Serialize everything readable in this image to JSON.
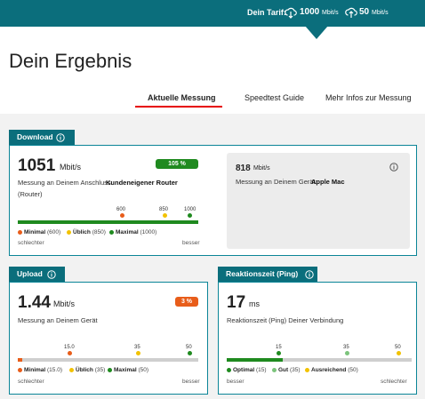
{
  "header": {
    "tariff_label": "Dein Tarif:",
    "download": 1000,
    "download_unit": "Mbit/s",
    "upload": 50,
    "upload_unit": "Mbit/s"
  },
  "title": "Dein Ergebnis",
  "tabs": [
    "Aktuelle Messung",
    "Speedtest Guide",
    "Mehr Infos zur Messung"
  ],
  "download": {
    "label": "Download",
    "value": 1051,
    "unit": "Mbit/s",
    "badge": "105 %",
    "description": "Messung an Deinem Anschluss:",
    "device": "Kundeneigener Router",
    "device_type": "(Router)",
    "ticks": [
      600,
      850,
      1000
    ],
    "legend": [
      {
        "name": "Minimal",
        "value": "(600)"
      },
      {
        "name": "Üblich",
        "value": "(850)"
      },
      {
        "name": "Maximal",
        "value": "(1000)"
      }
    ],
    "scale_left": "schlechter",
    "scale_right": "besser",
    "device_box": {
      "value": 818,
      "unit": "Mbit/s",
      "description": "Messung an Deinem Gerät:",
      "device": "Apple Mac"
    }
  },
  "upload": {
    "label": "Upload",
    "value": 1.44,
    "unit": "Mbit/s",
    "badge": "3 %",
    "description": "Messung an Deinem Gerät",
    "ticks": [
      "15.0",
      35,
      50
    ],
    "legend": [
      {
        "name": "Minimal",
        "value": "(15.0)"
      },
      {
        "name": "Üblich",
        "value": "(35)"
      },
      {
        "name": "Maximal",
        "value": "(50)"
      }
    ],
    "scale_left": "schlechter",
    "scale_right": "besser"
  },
  "ping": {
    "label": "Reaktionszeit (Ping)",
    "value": 17,
    "unit": "ms",
    "description": "Reaktionszeit (Ping) Deiner Verbindung",
    "ticks": [
      15,
      35,
      50
    ],
    "legend": [
      {
        "name": "Optimal",
        "value": "(15)"
      },
      {
        "name": "Gut",
        "value": "(35)"
      },
      {
        "name": "Ausreichend",
        "value": "(50)"
      }
    ],
    "scale_left": "besser",
    "scale_right": "schlechter"
  }
}
